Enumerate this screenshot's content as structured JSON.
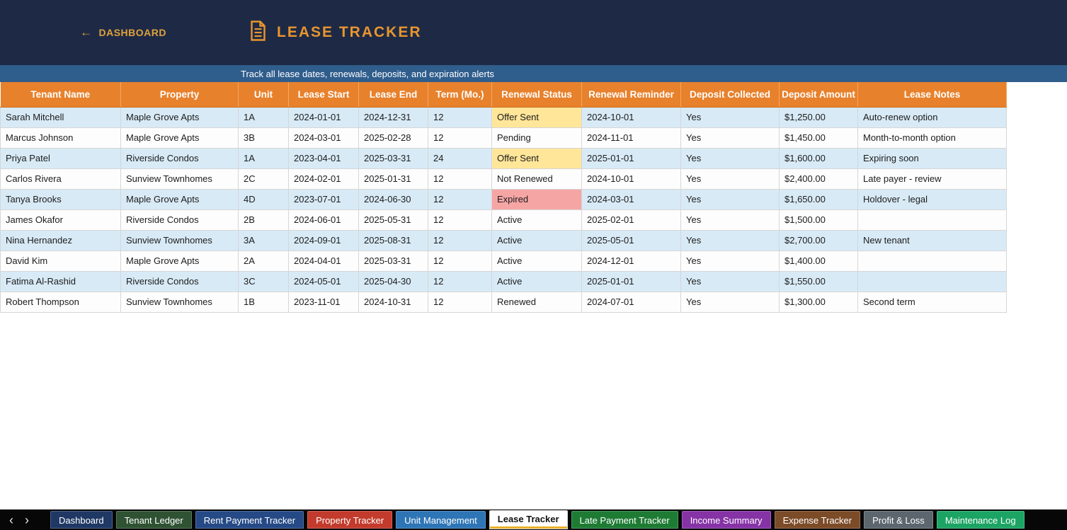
{
  "header": {
    "back_label": "DASHBOARD",
    "title": "LEASE TRACKER",
    "subtitle": "Track all lease dates, renewals, deposits, and expiration alerts"
  },
  "colors": {
    "top_header_background": "#1E2A45",
    "subtitle_background": "#2F5D8C",
    "table_header_orange": "#E8812C",
    "title_orange": "#E8952F",
    "back_link_gold": "#DFA23C",
    "row_alternate_blue": "#D8EAF6",
    "active_tab_underline": "#E8B229"
  },
  "table": {
    "columns": [
      "Tenant Name",
      "Property",
      "Unit",
      "Lease Start",
      "Lease End",
      "Term (Mo.)",
      "Renewal Status",
      "Renewal Reminder",
      "Deposit Collected",
      "Deposit Amount",
      "Lease Notes"
    ],
    "status_colors": {
      "offer": "#FFE699",
      "expired": "#F6A5A5"
    },
    "rows": [
      {
        "tenant": "Sarah Mitchell",
        "property": "Maple Grove Apts",
        "unit": "1A",
        "lease_start": "2024-01-01",
        "lease_end": "2024-12-31",
        "term": "12",
        "renewal_status": "Offer Sent",
        "status_style": "offer",
        "renewal_reminder": "2024-10-01",
        "deposit_collected": "Yes",
        "deposit_amount": "$1,250.00",
        "notes": "Auto-renew option"
      },
      {
        "tenant": "Marcus Johnson",
        "property": "Maple Grove Apts",
        "unit": "3B",
        "lease_start": "2024-03-01",
        "lease_end": "2025-02-28",
        "term": "12",
        "renewal_status": "Pending",
        "status_style": "none",
        "renewal_reminder": "2024-11-01",
        "deposit_collected": "Yes",
        "deposit_amount": "$1,450.00",
        "notes": "Month-to-month option"
      },
      {
        "tenant": "Priya Patel",
        "property": "Riverside Condos",
        "unit": "1A",
        "lease_start": "2023-04-01",
        "lease_end": "2025-03-31",
        "term": "24",
        "renewal_status": "Offer Sent",
        "status_style": "offer",
        "renewal_reminder": "2025-01-01",
        "deposit_collected": "Yes",
        "deposit_amount": "$1,600.00",
        "notes": "Expiring soon"
      },
      {
        "tenant": "Carlos Rivera",
        "property": "Sunview Townhomes",
        "unit": "2C",
        "lease_start": "2024-02-01",
        "lease_end": "2025-01-31",
        "term": "12",
        "renewal_status": "Not Renewed",
        "status_style": "none",
        "renewal_reminder": "2024-10-01",
        "deposit_collected": "Yes",
        "deposit_amount": "$2,400.00",
        "notes": "Late payer - review"
      },
      {
        "tenant": "Tanya Brooks",
        "property": "Maple Grove Apts",
        "unit": "4D",
        "lease_start": "2023-07-01",
        "lease_end": "2024-06-30",
        "term": "12",
        "renewal_status": "Expired",
        "status_style": "expired",
        "renewal_reminder": "2024-03-01",
        "deposit_collected": "Yes",
        "deposit_amount": "$1,650.00",
        "notes": "Holdover - legal"
      },
      {
        "tenant": "James Okafor",
        "property": "Riverside Condos",
        "unit": "2B",
        "lease_start": "2024-06-01",
        "lease_end": "2025-05-31",
        "term": "12",
        "renewal_status": "Active",
        "status_style": "none",
        "renewal_reminder": "2025-02-01",
        "deposit_collected": "Yes",
        "deposit_amount": "$1,500.00",
        "notes": ""
      },
      {
        "tenant": "Nina Hernandez",
        "property": "Sunview Townhomes",
        "unit": "3A",
        "lease_start": "2024-09-01",
        "lease_end": "2025-08-31",
        "term": "12",
        "renewal_status": "Active",
        "status_style": "none",
        "renewal_reminder": "2025-05-01",
        "deposit_collected": "Yes",
        "deposit_amount": "$2,700.00",
        "notes": "New tenant"
      },
      {
        "tenant": "David Kim",
        "property": "Maple Grove Apts",
        "unit": "2A",
        "lease_start": "2024-04-01",
        "lease_end": "2025-03-31",
        "term": "12",
        "renewal_status": "Active",
        "status_style": "none",
        "renewal_reminder": "2024-12-01",
        "deposit_collected": "Yes",
        "deposit_amount": "$1,400.00",
        "notes": ""
      },
      {
        "tenant": "Fatima Al-Rashid",
        "property": "Riverside Condos",
        "unit": "3C",
        "lease_start": "2024-05-01",
        "lease_end": "2025-04-30",
        "term": "12",
        "renewal_status": "Active",
        "status_style": "none",
        "renewal_reminder": "2025-01-01",
        "deposit_collected": "Yes",
        "deposit_amount": "$1,550.00",
        "notes": ""
      },
      {
        "tenant": "Robert Thompson",
        "property": "Sunview Townhomes",
        "unit": "1B",
        "lease_start": "2023-11-01",
        "lease_end": "2024-10-31",
        "term": "12",
        "renewal_status": "Renewed",
        "status_style": "none",
        "renewal_reminder": "2024-07-01",
        "deposit_collected": "Yes",
        "deposit_amount": "$1,300.00",
        "notes": "Second term"
      }
    ]
  },
  "tab_bar": {
    "scroll_left": "‹",
    "scroll_right": "›",
    "tabs": [
      {
        "label": "Dashboard",
        "color": "#1F3864",
        "active": false
      },
      {
        "label": "Tenant Ledger",
        "color": "#2F5233",
        "active": false
      },
      {
        "label": "Rent Payment Tracker",
        "color": "#264A86",
        "active": false
      },
      {
        "label": "Property Tracker",
        "color": "#C23B2C",
        "active": false
      },
      {
        "label": "Unit Management",
        "color": "#2E75B6",
        "active": false
      },
      {
        "label": "Lease Tracker",
        "color": "#FFFFFF",
        "active": true
      },
      {
        "label": "Late Payment Tracker",
        "color": "#1E7B34",
        "active": false
      },
      {
        "label": "Income Summary",
        "color": "#8633A6",
        "active": false
      },
      {
        "label": "Expense Tracker",
        "color": "#7C4B28",
        "active": false
      },
      {
        "label": "Profit & Loss",
        "color": "#5C666E",
        "active": false
      },
      {
        "label": "Maintenance Log",
        "color": "#1CA464",
        "active": false
      }
    ]
  }
}
